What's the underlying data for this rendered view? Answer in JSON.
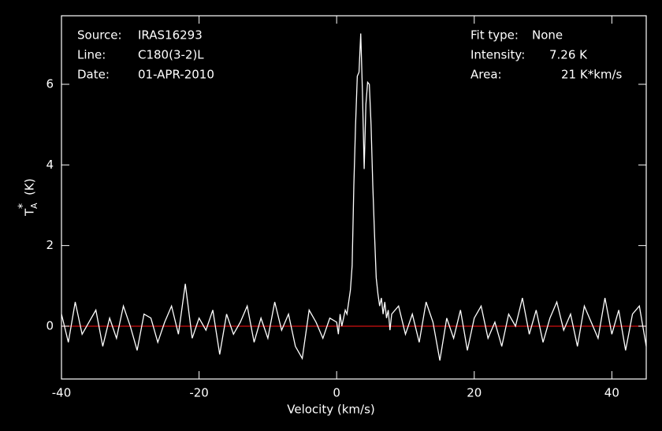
{
  "chart_data": {
    "type": "line",
    "xlabel": "Velocity (km/s)",
    "ylabel": {
      "main": "T",
      "sub": "A",
      "sup": "*",
      "unit": "(K)"
    },
    "annotations_left": [
      {
        "key": "Source:",
        "value": "IRAS16293"
      },
      {
        "key": "Line:",
        "value": "C180(3-2)L"
      },
      {
        "key": "Date:",
        "value": "01-APR-2010"
      }
    ],
    "annotations_right": [
      {
        "key": "Fit type:",
        "value": "None"
      },
      {
        "key": "Intensity:",
        "value": "7.26 K"
      },
      {
        "key": "Area:",
        "value": "21 K*km/s"
      }
    ],
    "xlim": [
      -40,
      45
    ],
    "ylim": [
      -1.31,
      7.7
    ],
    "xticks": [
      -40,
      -20,
      0,
      20,
      40
    ],
    "yticks": [
      0,
      2,
      4,
      6
    ],
    "baseline": {
      "value": 0,
      "color": "#d01010"
    },
    "axis_color": "#ffffff",
    "series": [
      {
        "color": "#ffffff",
        "x": [
          -40,
          -39,
          -38,
          -37,
          -36,
          -35,
          -34,
          -33,
          -32,
          -31,
          -30,
          -29,
          -28,
          -27,
          -26,
          -25,
          -24,
          -23,
          -22,
          -21,
          -20,
          -19,
          -18,
          -17,
          -16,
          -15,
          -14,
          -13,
          -12,
          -11,
          -10,
          -9,
          -8,
          -7,
          -6,
          -5,
          -4,
          -3,
          -2,
          -1,
          0,
          0.25,
          0.5,
          0.75,
          1,
          1.25,
          1.5,
          1.75,
          2,
          2.25,
          2.5,
          2.75,
          3,
          3.25,
          3.5,
          3.75,
          4,
          4.25,
          4.5,
          4.75,
          5,
          5.25,
          5.5,
          5.75,
          6,
          6.25,
          6.5,
          6.75,
          7,
          7.25,
          7.5,
          7.75,
          8,
          9,
          10,
          11,
          12,
          13,
          14,
          15,
          16,
          17,
          18,
          19,
          20,
          21,
          22,
          23,
          24,
          25,
          26,
          27,
          28,
          29,
          30,
          31,
          32,
          33,
          34,
          35,
          36,
          37,
          38,
          39,
          40,
          41,
          42,
          43,
          44,
          45
        ],
        "values": [
          0.3,
          -0.4,
          0.6,
          -0.2,
          0.1,
          0.4,
          -0.5,
          0.2,
          -0.3,
          0.5,
          0.0,
          -0.6,
          0.3,
          0.2,
          -0.4,
          0.1,
          0.5,
          -0.2,
          1.05,
          -0.3,
          0.2,
          -0.1,
          0.4,
          -0.7,
          0.3,
          -0.2,
          0.1,
          0.5,
          -0.4,
          0.2,
          -0.3,
          0.6,
          -0.1,
          0.3,
          -0.5,
          -0.8,
          0.4,
          0.1,
          -0.3,
          0.2,
          0.1,
          -0.2,
          0.3,
          0.0,
          0.2,
          0.4,
          0.3,
          0.6,
          0.9,
          1.5,
          3.5,
          5.0,
          6.2,
          6.3,
          7.26,
          5.8,
          3.9,
          5.5,
          6.05,
          6.0,
          5.0,
          3.5,
          2.3,
          1.2,
          0.8,
          0.5,
          0.7,
          0.3,
          0.6,
          0.2,
          0.4,
          -0.1,
          0.3,
          0.5,
          -0.2,
          0.3,
          -0.4,
          0.6,
          0.1,
          -0.85,
          0.2,
          -0.3,
          0.4,
          -0.6,
          0.2,
          0.5,
          -0.3,
          0.1,
          -0.5,
          0.3,
          0.0,
          0.7,
          -0.2,
          0.4,
          -0.4,
          0.2,
          0.6,
          -0.1,
          0.3,
          -0.5,
          0.5,
          0.1,
          -0.3,
          0.7,
          -0.2,
          0.4,
          -0.6,
          0.3,
          0.5,
          -0.5
        ]
      }
    ]
  }
}
